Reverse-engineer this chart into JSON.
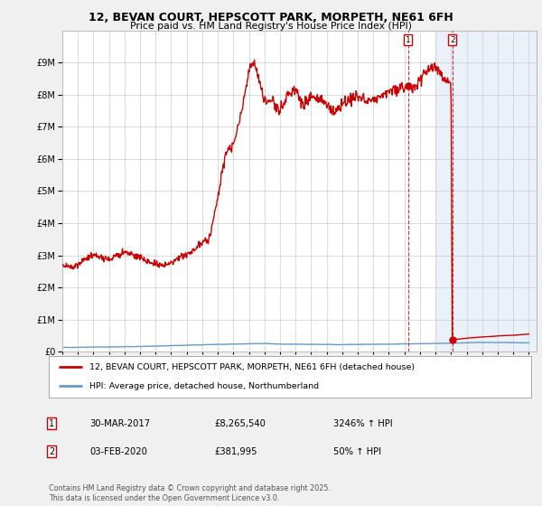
{
  "title": "12, BEVAN COURT, HEPSCOTT PARK, MORPETH, NE61 6FH",
  "subtitle": "Price paid vs. HM Land Registry's House Price Index (HPI)",
  "ylim": [
    0,
    10000000
  ],
  "yticks": [
    0,
    1000000,
    2000000,
    3000000,
    4000000,
    5000000,
    6000000,
    7000000,
    8000000,
    9000000
  ],
  "ytick_labels": [
    "£0",
    "£1M",
    "£2M",
    "£3M",
    "£4M",
    "£5M",
    "£6M",
    "£7M",
    "£8M",
    "£9M"
  ],
  "xlim_start": 1995.0,
  "xlim_end": 2025.5,
  "xtick_years": [
    1995,
    1996,
    1997,
    1998,
    1999,
    2000,
    2001,
    2002,
    2003,
    2004,
    2005,
    2006,
    2007,
    2008,
    2009,
    2010,
    2011,
    2012,
    2013,
    2014,
    2015,
    2016,
    2017,
    2018,
    2019,
    2020,
    2021,
    2022,
    2023,
    2024,
    2025
  ],
  "point1_x": 2017.25,
  "point1_y": 8265540,
  "point1_label": "1",
  "point2_x": 2020.08,
  "point2_y": 381995,
  "point2_label": "2",
  "point1_date": "30-MAR-2017",
  "point1_price": "£8,265,540",
  "point1_hpi": "3246% ↑ HPI",
  "point2_date": "03-FEB-2020",
  "point2_price": "£381,995",
  "point2_hpi": "50% ↑ HPI",
  "hpi_line_color": "#6699cc",
  "price_line_color": "#cc0000",
  "bg_color": "#f0f0f0",
  "plot_bg_color": "#ffffff",
  "legend_line1": "12, BEVAN COURT, HEPSCOTT PARK, MORPETH, NE61 6FH (detached house)",
  "legend_line2": "HPI: Average price, detached house, Northumberland",
  "footer": "Contains HM Land Registry data © Crown copyright and database right 2025.\nThis data is licensed under the Open Government Licence v3.0.",
  "shaded_region_start": 2019.0,
  "shaded_region_end": 2025.5,
  "red_knots_x": [
    1995.0,
    1995.5,
    1996.0,
    1996.5,
    1997.0,
    1997.5,
    1998.0,
    1998.5,
    1999.0,
    1999.5,
    2000.0,
    2000.5,
    2001.0,
    2001.5,
    2002.0,
    2002.5,
    2003.0,
    2003.5,
    2004.0,
    2004.5,
    2005.0,
    2005.5,
    2006.0,
    2006.5,
    2007.0,
    2007.25,
    2007.5,
    2007.75,
    2008.0,
    2008.5,
    2009.0,
    2009.5,
    2010.0,
    2010.5,
    2011.0,
    2011.5,
    2012.0,
    2012.5,
    2013.0,
    2013.5,
    2014.0,
    2014.5,
    2015.0,
    2015.5,
    2016.0,
    2016.5,
    2017.0,
    2017.25,
    2017.5,
    2018.0,
    2018.5,
    2019.0,
    2019.5,
    2019.9,
    2020.0,
    2020.08,
    2020.5,
    2021.0,
    2021.5,
    2022.0,
    2022.5,
    2023.0,
    2023.5,
    2024.0,
    2024.5,
    2025.0
  ],
  "red_knots_y": [
    2700000,
    2650000,
    2750000,
    2900000,
    3000000,
    2950000,
    2850000,
    3000000,
    3100000,
    3050000,
    2950000,
    2800000,
    2750000,
    2700000,
    2750000,
    2900000,
    3050000,
    3200000,
    3400000,
    3600000,
    4800000,
    6200000,
    6400000,
    7400000,
    8750000,
    9000000,
    8800000,
    8200000,
    7800000,
    7800000,
    7500000,
    8000000,
    8200000,
    7600000,
    8000000,
    7900000,
    7700000,
    7500000,
    7700000,
    7900000,
    8000000,
    7800000,
    7900000,
    8000000,
    8100000,
    8200000,
    8200000,
    8265540,
    8200000,
    8500000,
    8700000,
    8900000,
    8500000,
    8400000,
    8350000,
    381995,
    390000,
    420000,
    440000,
    460000,
    470000,
    490000,
    500000,
    510000,
    530000,
    550000
  ],
  "hpi_knots_x": [
    1995,
    2000,
    2004,
    2007,
    2008,
    2009,
    2013,
    2016,
    2019,
    2020,
    2022,
    2025
  ],
  "hpi_knots_y": [
    130000,
    160000,
    215000,
    245000,
    255000,
    235000,
    220000,
    235000,
    255000,
    265000,
    290000,
    275000
  ]
}
